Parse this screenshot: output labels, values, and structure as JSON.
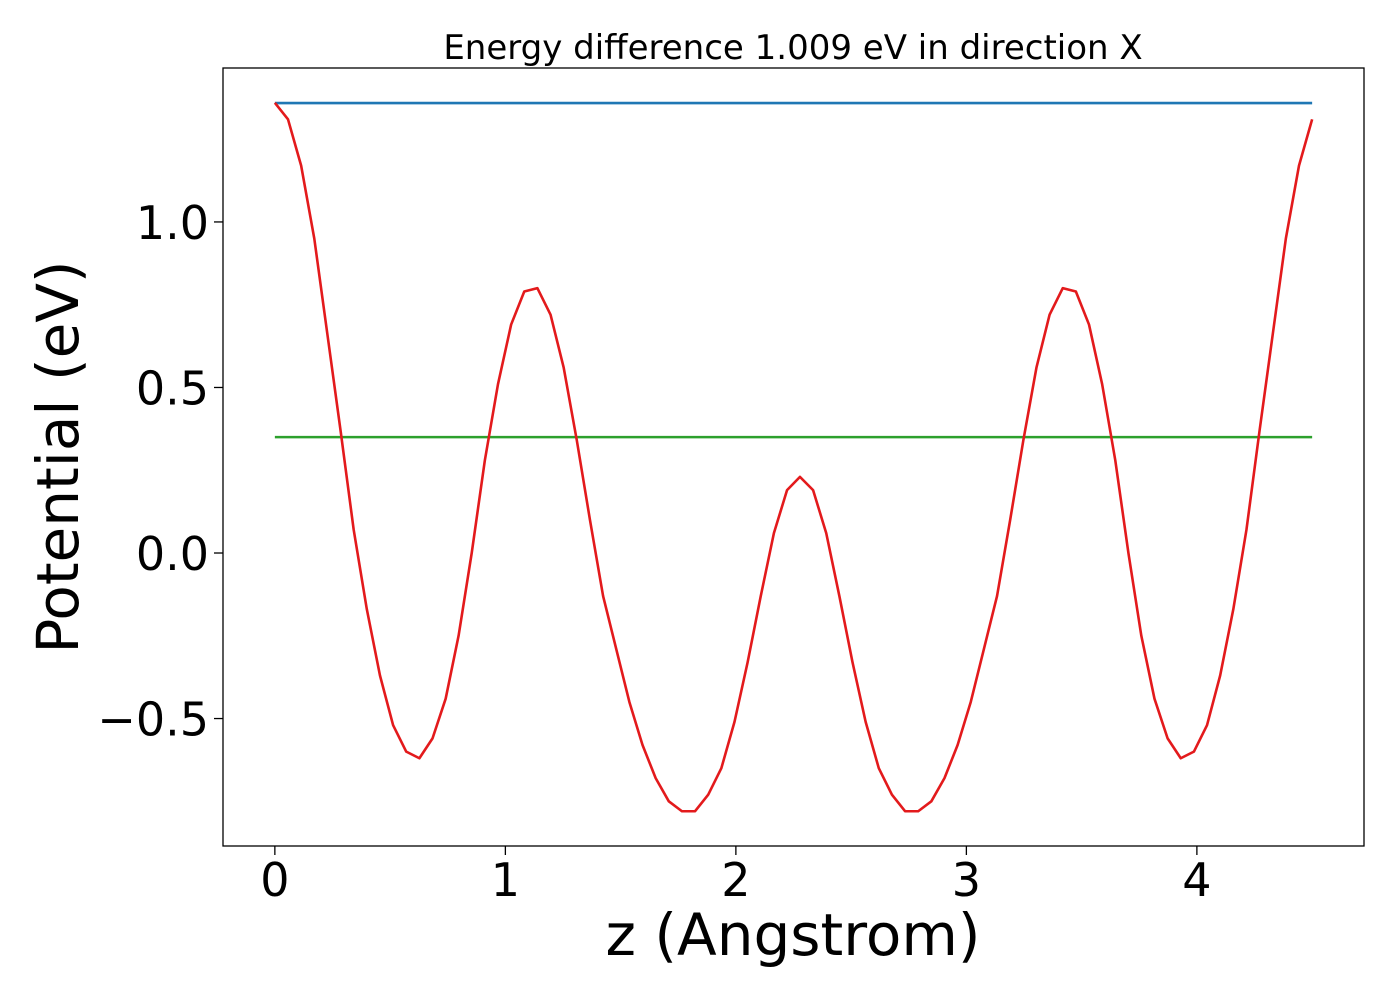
{
  "chart_data": {
    "type": "line",
    "title": "Energy difference 1.009 eV in direction X",
    "x_label": "z (Angstrom)",
    "y_label": "Potential (eV)",
    "xlim": [
      -0.225,
      4.725
    ],
    "ylim": [
      -0.885,
      1.465
    ],
    "xticks": [
      0,
      1,
      2,
      3,
      4
    ],
    "yticks": [
      {
        "value": -0.5,
        "label": "−0.5"
      },
      {
        "value": 0.0,
        "label": "0.0"
      },
      {
        "value": 0.5,
        "label": "0.5"
      },
      {
        "value": 1.0,
        "label": "1.0"
      }
    ],
    "grid": false,
    "series": [
      {
        "color": "#1f77b4",
        "x": [
          0,
          4.5
        ],
        "values": [
          1.359,
          1.359
        ]
      },
      {
        "color": "#2ca02c",
        "x": [
          0,
          4.5
        ],
        "values": [
          0.35,
          0.35
        ]
      },
      {
        "color": "#e31a1c",
        "x": [
          0,
          0.057,
          0.114,
          0.171,
          0.228,
          0.285,
          0.342,
          0.399,
          0.456,
          0.513,
          0.57,
          0.627,
          0.684,
          0.741,
          0.797,
          0.854,
          0.911,
          0.968,
          1.025,
          1.082,
          1.139,
          1.196,
          1.253,
          1.31,
          1.367,
          1.424,
          1.481,
          1.538,
          1.595,
          1.652,
          1.709,
          1.766,
          1.823,
          1.88,
          1.937,
          1.994,
          2.051,
          2.108,
          2.165,
          2.222,
          2.278,
          2.335,
          2.392,
          2.449,
          2.506,
          2.563,
          2.62,
          2.677,
          2.734,
          2.791,
          2.848,
          2.905,
          2.962,
          3.019,
          3.076,
          3.133,
          3.19,
          3.247,
          3.304,
          3.361,
          3.418,
          3.475,
          3.532,
          3.589,
          3.646,
          3.703,
          3.759,
          3.816,
          3.873,
          3.93,
          3.987,
          4.044,
          4.101,
          4.158,
          4.215,
          4.272,
          4.329,
          4.386,
          4.443,
          4.5
        ],
        "values": [
          1.36,
          1.31,
          1.17,
          0.95,
          0.66,
          0.37,
          0.07,
          -0.17,
          -0.37,
          -0.52,
          -0.6,
          -0.62,
          -0.56,
          -0.44,
          -0.25,
          0.0,
          0.28,
          0.51,
          0.69,
          0.79,
          0.8,
          0.72,
          0.56,
          0.34,
          0.1,
          -0.13,
          -0.29,
          -0.45,
          -0.58,
          -0.68,
          -0.75,
          -0.78,
          -0.78,
          -0.73,
          -0.65,
          -0.51,
          -0.33,
          -0.13,
          0.06,
          0.19,
          0.23,
          0.19,
          0.06,
          -0.13,
          -0.33,
          -0.51,
          -0.65,
          -0.73,
          -0.78,
          -0.78,
          -0.75,
          -0.68,
          -0.58,
          -0.45,
          -0.29,
          -0.13,
          0.1,
          0.34,
          0.56,
          0.72,
          0.8,
          0.79,
          0.69,
          0.51,
          0.28,
          0.0,
          -0.25,
          -0.44,
          -0.56,
          -0.62,
          -0.6,
          -0.52,
          -0.37,
          -0.17,
          0.07,
          0.37,
          0.66,
          0.95,
          1.17,
          1.31
        ]
      }
    ]
  }
}
